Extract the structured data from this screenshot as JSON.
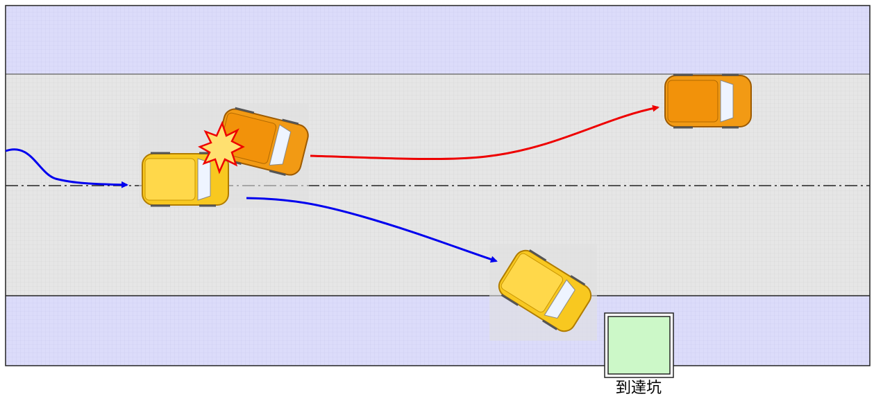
{
  "pit_label": "到達坑"
}
